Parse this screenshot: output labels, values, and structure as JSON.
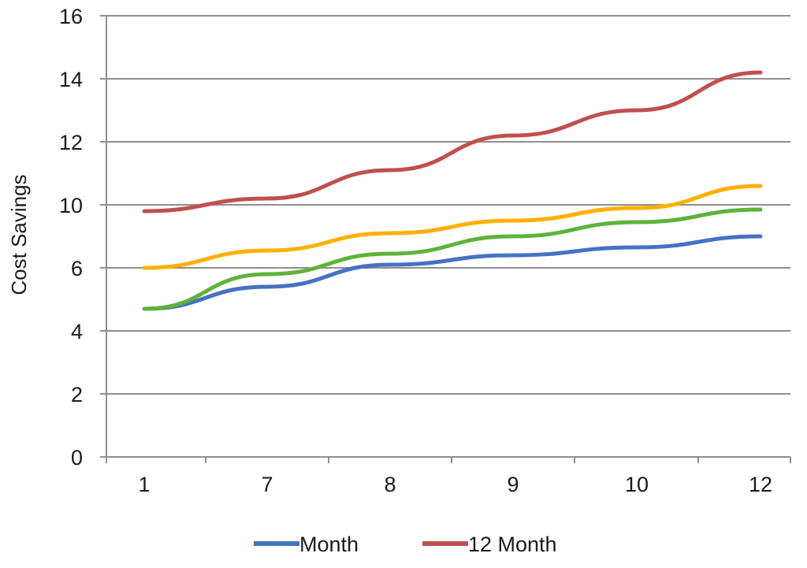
{
  "chart_data": {
    "type": "line",
    "title": "",
    "xlabel": "",
    "ylabel": "Cost Savings",
    "categories": [
      "1",
      "7",
      "8",
      "9",
      "10",
      "12"
    ],
    "ylim": [
      0,
      16
    ],
    "yticks": [
      "0",
      "2",
      "4",
      "6",
      "10",
      "12",
      "14",
      "16"
    ],
    "grid": true,
    "legend_position": "bottom",
    "series": [
      {
        "name": "Month",
        "color": "#4472C4",
        "values": [
          4.7,
          5.4,
          6.2,
          6.8,
          7.3,
          8.0
        ],
        "legend": true
      },
      {
        "name": "12 Month",
        "color": "#C0504D",
        "values": [
          9.6,
          10.2,
          11.1,
          12.2,
          13.0,
          14.2
        ],
        "legend": true
      },
      {
        "color": "#FFB000",
        "values": [
          6.0,
          7.1,
          8.2,
          9.0,
          9.8,
          10.6
        ],
        "legend": false
      },
      {
        "color": "#5DB33A",
        "values": [
          4.7,
          5.8,
          6.9,
          8.0,
          8.9,
          9.7
        ],
        "legend": false
      }
    ]
  }
}
